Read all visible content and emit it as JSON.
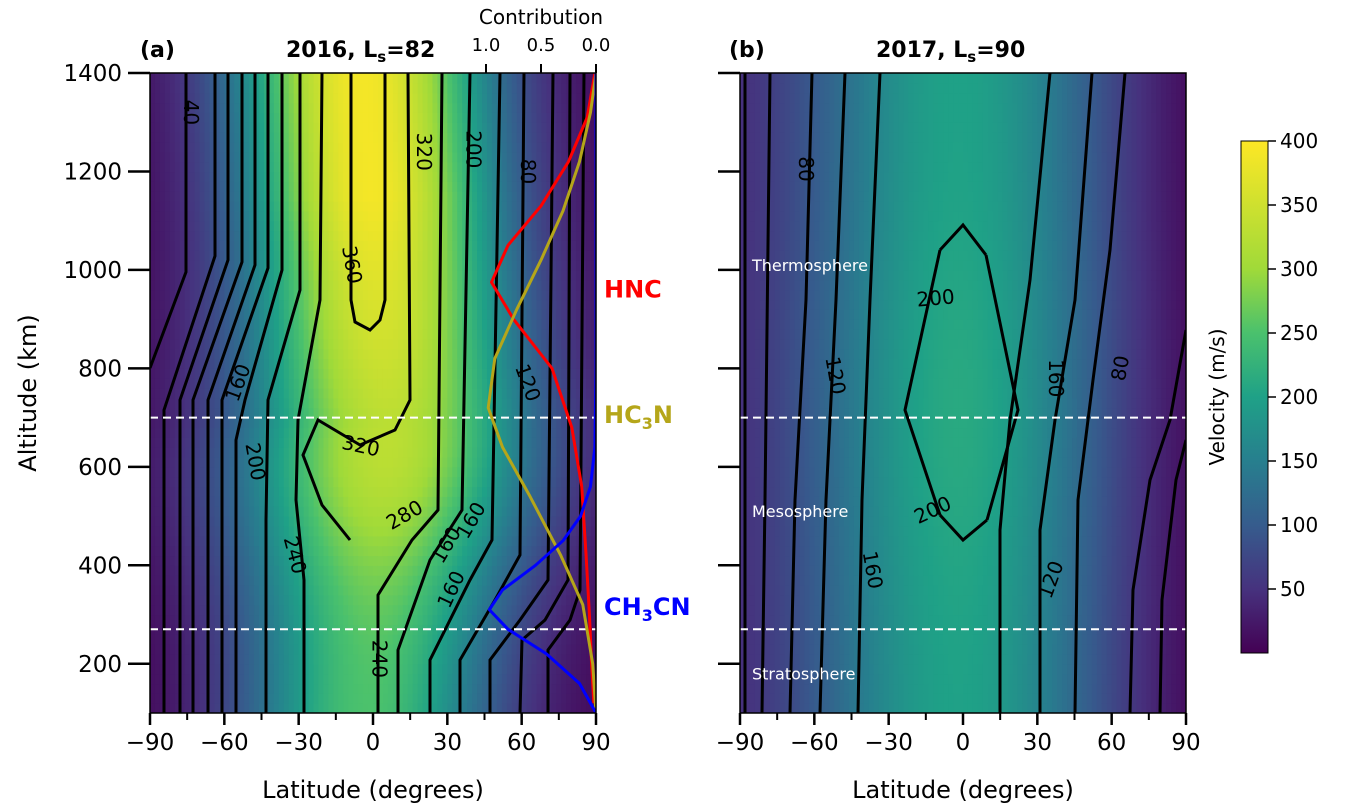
{
  "chart_data": [
    {
      "panel": "a",
      "type": "heatmap",
      "panel_label": "(a)",
      "title": "2016, L",
      "title_sub": "s",
      "title_tail": "=82",
      "xlabel": "Latitude (degrees)",
      "ylabel": "Altitude (km)",
      "xlim": [
        -90,
        90
      ],
      "ylim": [
        100,
        1400
      ],
      "xticks": [
        -90,
        -60,
        -30,
        0,
        30,
        60,
        90
      ],
      "xtick_labels": [
        "−90",
        "−60",
        "−30",
        "0",
        "30",
        "60",
        "90"
      ],
      "yticks": [
        200,
        400,
        600,
        800,
        1000,
        1200,
        1400
      ],
      "ytick_labels": [
        "200",
        "400",
        "600",
        "800",
        "1000",
        "1200",
        "1400"
      ],
      "field": {
        "peak_velocity": 395,
        "peak_latitude": 0,
        "description_levels": [
          40,
          80,
          120,
          160,
          200,
          240,
          280,
          320,
          360
        ]
      },
      "contour_labels": [
        {
          "text": "40",
          "lat": -74,
          "alt": 1320,
          "angle": 90
        },
        {
          "text": "360",
          "lat": -9,
          "alt": 1010,
          "angle": 80
        },
        {
          "text": "320",
          "lat": 20,
          "alt": 1240,
          "angle": 90
        },
        {
          "text": "200",
          "lat": 40,
          "alt": 1245,
          "angle": 90
        },
        {
          "text": "80",
          "lat": 62,
          "alt": 1200,
          "angle": 90
        },
        {
          "text": "160",
          "lat": -54,
          "alt": 770,
          "angle": -70
        },
        {
          "text": "120",
          "lat": 62,
          "alt": 770,
          "angle": 70
        },
        {
          "text": "200",
          "lat": -48,
          "alt": 610,
          "angle": 80
        },
        {
          "text": "320",
          "lat": -5,
          "alt": 640,
          "angle": 12
        },
        {
          "text": "280",
          "lat": 13,
          "alt": 500,
          "angle": -30
        },
        {
          "text": "160",
          "lat": 40,
          "alt": 490,
          "angle": -60
        },
        {
          "text": "160",
          "lat": 30,
          "alt": 440,
          "angle": -60
        },
        {
          "text": "240",
          "lat": -32,
          "alt": 420,
          "angle": 75
        },
        {
          "text": "160",
          "lat": 32,
          "alt": 350,
          "angle": -65
        },
        {
          "text": "240",
          "lat": 2,
          "alt": 210,
          "angle": 90
        }
      ],
      "contribution_axis": {
        "label": "Contribution",
        "ticks": [
          1.0,
          0.5,
          0.0
        ],
        "tick_labels": [
          "1.0",
          "0.5",
          "0.0"
        ]
      },
      "contribution_series": [
        {
          "name": "HNC",
          "color": "#ff0000",
          "points": [
            [
              0.02,
              120
            ],
            [
              0.04,
              200
            ],
            [
              0.06,
              300
            ],
            [
              0.09,
              420
            ],
            [
              0.13,
              560
            ],
            [
              0.22,
              680
            ],
            [
              0.4,
              800
            ],
            [
              0.75,
              900
            ],
            [
              0.95,
              975
            ],
            [
              0.8,
              1050
            ],
            [
              0.5,
              1130
            ],
            [
              0.25,
              1220
            ],
            [
              0.08,
              1310
            ],
            [
              0.01,
              1400
            ]
          ]
        },
        {
          "name": "HC3N",
          "color": "#b5a61a",
          "label_main": "HC",
          "label_sub": "3",
          "label_tail": "N",
          "points": [
            [
              0.0,
              100
            ],
            [
              0.03,
              200
            ],
            [
              0.12,
              320
            ],
            [
              0.32,
              420
            ],
            [
              0.6,
              540
            ],
            [
              0.85,
              640
            ],
            [
              0.98,
              720
            ],
            [
              0.92,
              820
            ],
            [
              0.72,
              920
            ],
            [
              0.5,
              1020
            ],
            [
              0.3,
              1120
            ],
            [
              0.15,
              1220
            ],
            [
              0.05,
              1320
            ],
            [
              0.0,
              1400
            ]
          ]
        },
        {
          "name": "CH3CN",
          "color": "#0000ff",
          "label_main": "CH",
          "label_sub": "3",
          "label_tail": "CN",
          "points": [
            [
              0.0,
              100
            ],
            [
              0.15,
              160
            ],
            [
              0.45,
              220
            ],
            [
              0.8,
              270
            ],
            [
              0.97,
              310
            ],
            [
              0.85,
              350
            ],
            [
              0.55,
              400
            ],
            [
              0.3,
              450
            ],
            [
              0.14,
              500
            ],
            [
              0.05,
              560
            ],
            [
              0.01,
              640
            ],
            [
              0.0,
              800
            ],
            [
              0.0,
              1400
            ]
          ]
        }
      ],
      "dashed_lines_alt": [
        700,
        270
      ],
      "species_labels": [
        {
          "text": "HNC",
          "alt": 960,
          "color": "#ff0000"
        },
        {
          "text": "HC",
          "sub": "3",
          "tail": "N",
          "alt": 705,
          "color": "#b5a61a"
        },
        {
          "text": "CH",
          "sub": "3",
          "tail": "CN",
          "alt": 315,
          "color": "#0000ff"
        }
      ]
    },
    {
      "panel": "b",
      "type": "heatmap",
      "panel_label": "(b)",
      "title": "2017, L",
      "title_sub": "s",
      "title_tail": "=90",
      "xlabel": "Latitude (degrees)",
      "xlim": [
        -90,
        90
      ],
      "ylim": [
        100,
        1400
      ],
      "xticks": [
        -90,
        -60,
        -30,
        0,
        30,
        60,
        90
      ],
      "xtick_labels": [
        "−90",
        "−60",
        "−30",
        "0",
        "30",
        "60",
        "90"
      ],
      "field": {
        "peak_velocity": 205,
        "peak_latitude": 0
      },
      "contour_labels": [
        {
          "text": "80",
          "lat": -64,
          "alt": 1205,
          "angle": 90
        },
        {
          "text": "200",
          "lat": -11,
          "alt": 940,
          "angle": -5
        },
        {
          "text": "120",
          "lat": -52,
          "alt": 785,
          "angle": 80
        },
        {
          "text": "160",
          "lat": 37,
          "alt": 780,
          "angle": 90
        },
        {
          "text": "80",
          "lat": 64,
          "alt": 800,
          "angle": -80
        },
        {
          "text": "200",
          "lat": -12,
          "alt": 510,
          "angle": -25
        },
        {
          "text": "160",
          "lat": -37,
          "alt": 390,
          "angle": 80
        },
        {
          "text": "120",
          "lat": 36,
          "alt": 370,
          "angle": -70
        }
      ],
      "region_labels": [
        {
          "text": "Thermosphere",
          "alt": 1010
        },
        {
          "text": "Mesosphere",
          "alt": 510
        },
        {
          "text": "Stratosphere",
          "alt": 180
        }
      ],
      "dashed_lines_alt": [
        700,
        270
      ]
    }
  ],
  "colorbar": {
    "label": "Velocity (m/s)",
    "min": 0,
    "max": 400,
    "ticks": [
      50,
      100,
      150,
      200,
      250,
      300,
      350,
      400
    ],
    "tick_labels": [
      "50",
      "100",
      "150",
      "200",
      "250",
      "300",
      "350",
      "400"
    ]
  }
}
